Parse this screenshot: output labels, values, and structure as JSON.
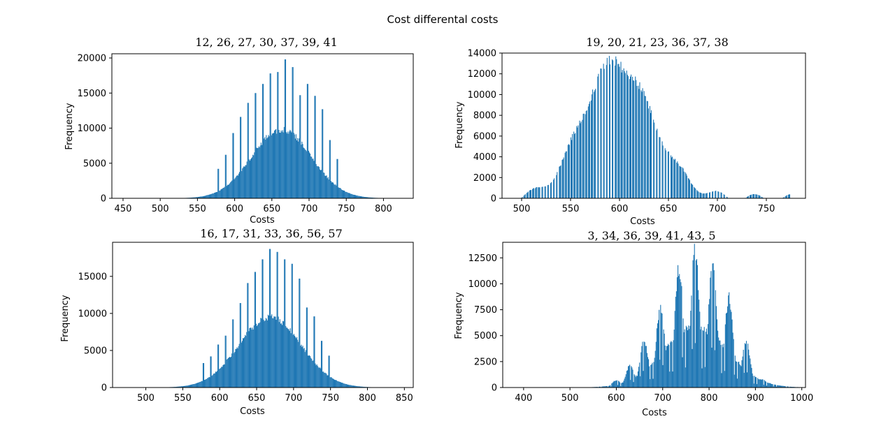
{
  "figure": {
    "title": "Cost differental costs"
  },
  "colors": {
    "bar": "#1f77b4",
    "axis": "#000000",
    "background": "#ffffff"
  },
  "chart_data": [
    {
      "type": "bar",
      "title": "12, 26, 27, 30, 37, 39, 41",
      "xlabel": "Costs",
      "ylabel": "Frequency",
      "xlim": [
        435,
        840
      ],
      "ylim": [
        0,
        20600
      ],
      "xticks": [
        450,
        500,
        550,
        600,
        650,
        700,
        750,
        800
      ],
      "yticks": [
        0,
        5000,
        10000,
        15000,
        20000
      ],
      "x_range": [
        445,
        830
      ],
      "distribution": {
        "mean": 663,
        "sd": 40,
        "peak": 9800
      },
      "spikes": [
        {
          "x": 578,
          "value": 4200
        },
        {
          "x": 588,
          "value": 6200
        },
        {
          "x": 598,
          "value": 9300
        },
        {
          "x": 608,
          "value": 11600
        },
        {
          "x": 618,
          "value": 13600
        },
        {
          "x": 628,
          "value": 15000
        },
        {
          "x": 638,
          "value": 16300
        },
        {
          "x": 648,
          "value": 17800
        },
        {
          "x": 658,
          "value": 18000
        },
        {
          "x": 668,
          "value": 19800
        },
        {
          "x": 678,
          "value": 18700
        },
        {
          "x": 688,
          "value": 14700
        },
        {
          "x": 698,
          "value": 16300
        },
        {
          "x": 708,
          "value": 14600
        },
        {
          "x": 718,
          "value": 12700
        },
        {
          "x": 728,
          "value": 8300
        },
        {
          "x": 738,
          "value": 5600
        }
      ]
    },
    {
      "type": "bar",
      "title": "19, 20, 21, 23, 36, 37, 38",
      "xlabel": "Costs",
      "ylabel": "Frequency",
      "xlim": [
        480,
        790
      ],
      "ylim": [
        0,
        14000
      ],
      "xticks": [
        500,
        550,
        600,
        650,
        700,
        750
      ],
      "yticks": [
        0,
        2000,
        4000,
        6000,
        8000,
        10000,
        12000,
        14000
      ],
      "x_range": [
        490,
        775
      ],
      "distribution": {
        "peak_x": 595,
        "peak": 13300,
        "shape": "right-skewed",
        "gap_every": 3
      }
    },
    {
      "type": "bar",
      "title": "16, 17, 31, 33, 36, 56, 57",
      "xlabel": "Costs",
      "ylabel": "Frequency",
      "xlim": [
        455,
        862
      ],
      "ylim": [
        0,
        19600
      ],
      "xticks": [
        500,
        550,
        600,
        650,
        700,
        750,
        800,
        850
      ],
      "yticks": [
        0,
        5000,
        10000,
        15000
      ],
      "x_range": [
        465,
        850
      ],
      "distribution": {
        "mean": 668,
        "sd": 42,
        "peak": 9500
      },
      "spikes": [
        {
          "x": 578,
          "value": 3300
        },
        {
          "x": 588,
          "value": 4200
        },
        {
          "x": 598,
          "value": 5800
        },
        {
          "x": 608,
          "value": 7000
        },
        {
          "x": 618,
          "value": 9200
        },
        {
          "x": 628,
          "value": 11400
        },
        {
          "x": 638,
          "value": 14100
        },
        {
          "x": 648,
          "value": 15600
        },
        {
          "x": 658,
          "value": 17300
        },
        {
          "x": 668,
          "value": 18700
        },
        {
          "x": 678,
          "value": 18300
        },
        {
          "x": 688,
          "value": 17300
        },
        {
          "x": 698,
          "value": 16700
        },
        {
          "x": 708,
          "value": 14700
        },
        {
          "x": 718,
          "value": 10800
        },
        {
          "x": 728,
          "value": 9600
        },
        {
          "x": 738,
          "value": 6300
        },
        {
          "x": 748,
          "value": 4300
        }
      ]
    },
    {
      "type": "bar",
      "title": "3, 34, 36, 39, 41, 43, 5",
      "xlabel": "Costs",
      "ylabel": "Frequency",
      "xlim": [
        355,
        1008
      ],
      "ylim": [
        0,
        14000
      ],
      "xticks": [
        400,
        500,
        600,
        700,
        800,
        900,
        1000
      ],
      "yticks": [
        0,
        2500,
        5000,
        7500,
        10000,
        12500
      ],
      "x_range": [
        370,
        995
      ],
      "distribution": {
        "shape": "multi-modal",
        "peaks": [
          {
            "x": 600,
            "value": 700
          },
          {
            "x": 630,
            "value": 2200
          },
          {
            "x": 660,
            "value": 4600
          },
          {
            "x": 695,
            "value": 7900
          },
          {
            "x": 735,
            "value": 11500
          },
          {
            "x": 770,
            "value": 13300
          },
          {
            "x": 808,
            "value": 12000
          },
          {
            "x": 843,
            "value": 8700
          },
          {
            "x": 880,
            "value": 4400
          },
          {
            "x": 915,
            "value": 800
          }
        ]
      }
    }
  ]
}
